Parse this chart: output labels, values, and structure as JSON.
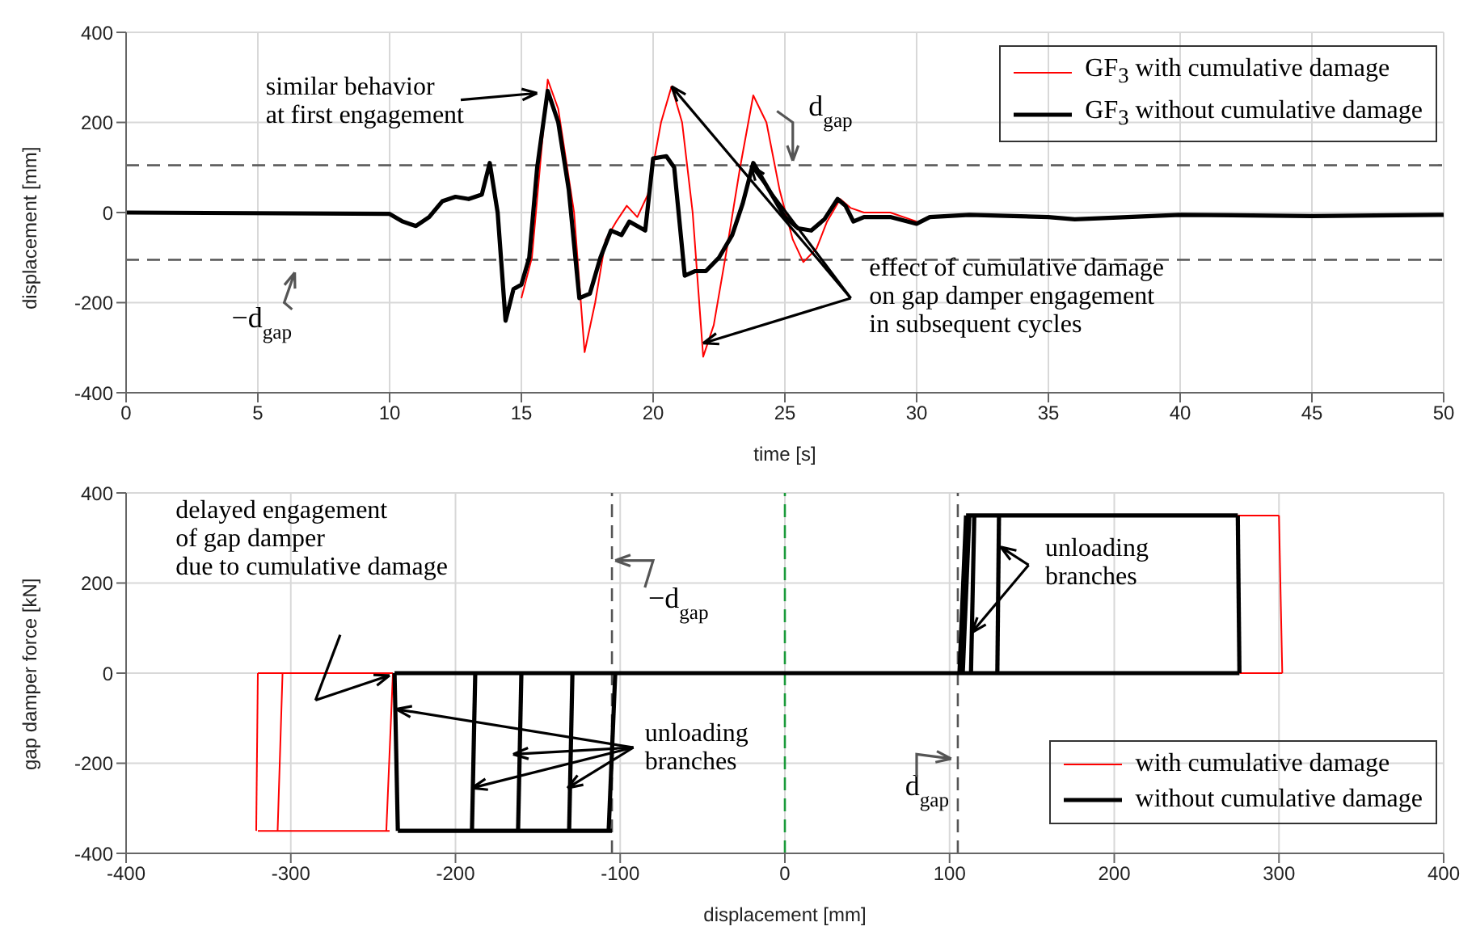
{
  "chart_data": [
    {
      "type": "line",
      "xlabel": "time [s]",
      "ylabel": "displacement [mm]",
      "xlim": [
        0,
        50
      ],
      "xticks": [
        0,
        5,
        10,
        15,
        20,
        25,
        30,
        35,
        40,
        45,
        50
      ],
      "ylim": [
        -400,
        400
      ],
      "yticks": [
        -400,
        -200,
        0,
        200,
        400
      ],
      "grid": true,
      "legend": "top right",
      "line_style": "solid",
      "series": [
        {
          "name": "GF$_{3}$ with cumulative damage",
          "color": "#ff0000",
          "x": [
            15,
            15.4,
            16,
            16.4,
            17,
            17.4,
            17.8,
            18.2,
            18.6,
            19,
            19.4,
            19.8,
            20.3,
            20.7,
            21.1,
            21.5,
            21.9,
            22.3,
            22.8,
            23.3,
            23.8,
            24.3,
            24.8,
            25.3,
            25.7,
            26.2,
            26.6,
            27.1,
            27.5,
            28,
            29,
            30
          ],
          "values": [
            -190,
            -100,
            295,
            230,
            0,
            -310,
            -200,
            -60,
            -20,
            15,
            -10,
            40,
            200,
            280,
            200,
            0,
            -320,
            -250,
            -80,
            100,
            260,
            200,
            50,
            -60,
            -110,
            -80,
            -20,
            30,
            10,
            0,
            0,
            -20
          ]
        },
        {
          "name": "GF$_{3}$ without cumulative damage",
          "color": "#000000",
          "x": [
            0,
            10,
            10.5,
            11,
            11.5,
            12,
            12.5,
            13,
            13.5,
            13.8,
            14.1,
            14.4,
            14.7,
            15,
            15.3,
            15.6,
            16,
            16.4,
            16.8,
            17.2,
            17.6,
            18,
            18.4,
            18.8,
            19.1,
            19.4,
            19.7,
            20,
            20.5,
            20.8,
            21.2,
            21.6,
            22,
            22.5,
            23,
            23.4,
            23.8,
            24.2,
            24.6,
            25,
            25.5,
            26,
            26.5,
            27,
            27.3,
            27.6,
            28,
            29,
            30,
            30.5,
            32,
            35,
            36,
            40,
            45,
            50
          ],
          "values": [
            0,
            -3,
            -20,
            -30,
            -10,
            25,
            35,
            30,
            40,
            110,
            0,
            -240,
            -170,
            -160,
            -100,
            100,
            270,
            200,
            50,
            -190,
            -180,
            -100,
            -40,
            -50,
            -20,
            -30,
            -40,
            120,
            125,
            100,
            -140,
            -130,
            -130,
            -100,
            -50,
            20,
            110,
            70,
            30,
            -10,
            -35,
            -40,
            -15,
            30,
            15,
            -20,
            -10,
            -10,
            -25,
            -10,
            -5,
            -10,
            -15,
            -5,
            -8,
            -5
          ]
        }
      ],
      "ref_lines": [
        {
          "axis": "y",
          "value": 105,
          "label": "d$_{gap}$",
          "color": "#555555",
          "line_style": "dashed"
        },
        {
          "axis": "y",
          "value": -105,
          "label": "−d$_{gap}$",
          "color": "#555555",
          "line_style": "dashed"
        }
      ],
      "annotations": [
        "similar behavior\nat first engagement",
        {
          "text": "effect of cumulative damage\non gap damper engagement\nin subsequent cycles",
          "x": 20.7,
          "y": 280
        }
      ]
    },
    {
      "type": "line",
      "xlabel": "displacement [mm]",
      "ylabel": "gap damper force [kN]",
      "xlim": [
        -400,
        400
      ],
      "xticks": [
        -400,
        -300,
        -200,
        -100,
        0,
        100,
        200,
        300,
        400
      ],
      "ylim": [
        -400,
        400
      ],
      "yticks": [
        -400,
        -200,
        0,
        200,
        400
      ],
      "grid": true,
      "legend": "bottom right",
      "line_style": "solid",
      "series": [
        {
          "name": "with cumulative damage",
          "color": "#ff0000",
          "x": [
            275,
            300
          ],
          "values": [
            350,
            350
          ]
        },
        {
          "color": "#ff0000",
          "x": [
            300,
            302
          ],
          "values": [
            350,
            0
          ]
        },
        {
          "color": "#ff0000",
          "x": [
            276,
            302
          ],
          "values": [
            0,
            0
          ]
        },
        {
          "color": "#ff0000",
          "x": [
            -320,
            -238
          ],
          "values": [
            0,
            0
          ]
        },
        {
          "color": "#ff0000",
          "x": [
            -320,
            -240
          ],
          "values": [
            -350,
            -350
          ]
        },
        {
          "color": "#ff0000",
          "x": [
            -321,
            -320
          ],
          "values": [
            -350,
            0
          ]
        },
        {
          "color": "#ff0000",
          "x": [
            -242,
            -238
          ],
          "values": [
            -350,
            0
          ]
        },
        {
          "color": "#ff0000",
          "x": [
            -308,
            -305
          ],
          "values": [
            -350,
            0
          ]
        },
        {
          "name": "without cumulative damage",
          "color": "#000000",
          "x": [
            -237,
            276
          ],
          "values": [
            0,
            0
          ]
        },
        {
          "color": "#000000",
          "x": [
            110,
            275
          ],
          "values": [
            350,
            350
          ]
        },
        {
          "color": "#000000",
          "x": [
            275,
            276
          ],
          "values": [
            350,
            0
          ]
        },
        {
          "color": "#000000",
          "x": [
            106,
            110
          ],
          "values": [
            0,
            350
          ]
        },
        {
          "color": "#000000",
          "x": [
            108,
            112
          ],
          "values": [
            0,
            350
          ]
        },
        {
          "color": "#000000",
          "x": [
            113,
            115
          ],
          "values": [
            0,
            350
          ]
        },
        {
          "color": "#000000",
          "x": [
            129,
            130
          ],
          "values": [
            0,
            350
          ]
        },
        {
          "color": "#000000",
          "x": [
            -235,
            -105
          ],
          "values": [
            -350,
            -350
          ]
        },
        {
          "color": "#000000",
          "x": [
            -237,
            -235
          ],
          "values": [
            0,
            -350
          ]
        },
        {
          "color": "#000000",
          "x": [
            -190,
            -188
          ],
          "values": [
            -350,
            0
          ]
        },
        {
          "color": "#000000",
          "x": [
            -162,
            -160
          ],
          "values": [
            -350,
            0
          ]
        },
        {
          "color": "#000000",
          "x": [
            -131,
            -129
          ],
          "values": [
            -350,
            0
          ]
        },
        {
          "color": "#000000",
          "x": [
            -107,
            -103
          ],
          "values": [
            -350,
            0
          ]
        }
      ],
      "ref_lines": [
        {
          "axis": "x",
          "value": -105,
          "label": "−d$_{gap}$",
          "color": "#555555",
          "line_style": "dashed"
        },
        {
          "axis": "x",
          "value": 0,
          "color": "#1a9a3a",
          "line_style": "dashed"
        },
        {
          "axis": "x",
          "value": 105,
          "label": "d$_{gap}$",
          "color": "#555555",
          "line_style": "dashed"
        }
      ],
      "annotations": [
        "delayed engagement\nof gap damper\ndue to cumulative damage",
        {
          "text": "unloading\nbranches",
          "x": -236,
          "y": -80
        },
        {
          "text": "unloading\nbranches",
          "x": 113.5,
          "y": 90
        }
      ]
    }
  ]
}
